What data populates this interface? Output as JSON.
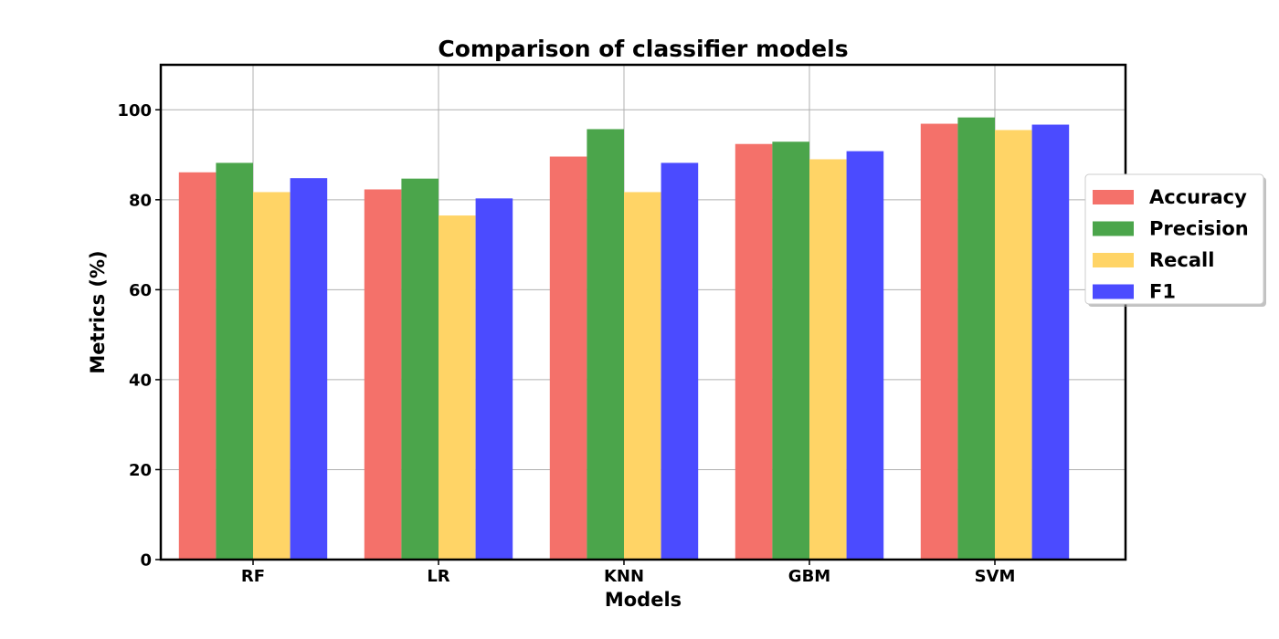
{
  "chart_data": {
    "type": "bar",
    "title": "Comparison of classifier models",
    "xlabel": "Models",
    "ylabel": "Metrics (%)",
    "categories": [
      "RF",
      "LR",
      "KNN",
      "GBM",
      "SVM"
    ],
    "ylim": [
      0,
      110
    ],
    "yticks": [
      0,
      20,
      40,
      60,
      80,
      100
    ],
    "grid": true,
    "legend_position": "right",
    "series": [
      {
        "name": "Accuracy",
        "color": "#f4716a",
        "values": [
          86.1,
          82.3,
          89.6,
          92.4,
          96.9
        ]
      },
      {
        "name": "Precision",
        "color": "#4ba54b",
        "values": [
          88.2,
          84.7,
          95.7,
          92.9,
          98.3
        ]
      },
      {
        "name": "Recall",
        "color": "#ffd466",
        "values": [
          81.7,
          76.5,
          81.7,
          89.0,
          95.5
        ]
      },
      {
        "name": "F1",
        "color": "#4b4bff",
        "values": [
          84.8,
          80.3,
          88.2,
          90.8,
          96.7
        ]
      }
    ]
  }
}
